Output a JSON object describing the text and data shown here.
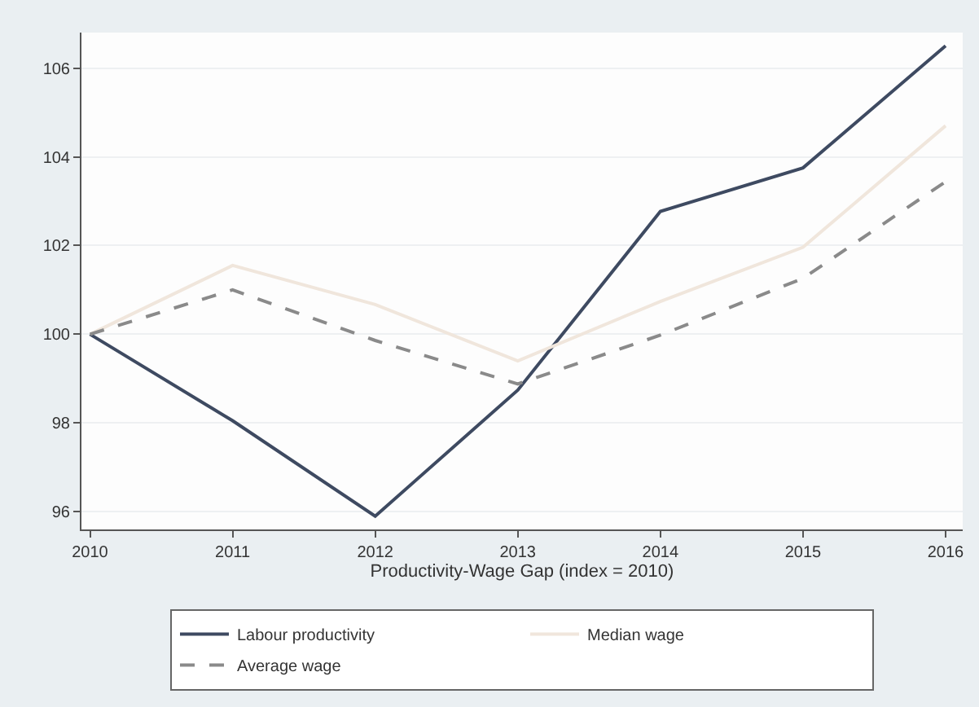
{
  "chart_data": {
    "type": "line",
    "xlabel": "Productivity-Wage Gap (index = 2010)",
    "x": [
      2010,
      2011,
      2012,
      2013,
      2014,
      2015,
      2016
    ],
    "series": [
      {
        "name": "Labour productivity",
        "color": "#3e4a61",
        "line_style": "solid",
        "values": [
          100,
          98.05,
          95.9,
          98.74,
          102.77,
          103.75,
          106.5
        ]
      },
      {
        "name": "Median wage",
        "color": "#f0e6dc",
        "line_style": "solid",
        "values": [
          100,
          101.55,
          100.67,
          99.4,
          100.74,
          101.96,
          104.7
        ]
      },
      {
        "name": "Average wage",
        "color": "#8a8a8a",
        "line_style": "dashed",
        "values": [
          100,
          101.0,
          99.86,
          98.88,
          99.98,
          101.26,
          103.44
        ]
      }
    ],
    "xlim": [
      2009.94,
      2016.12
    ],
    "xticks": [
      2010,
      2011,
      2012,
      2013,
      2014,
      2015,
      2016
    ],
    "ylim": [
      95.6,
      106.8
    ],
    "yticks": [
      96,
      98,
      100,
      102,
      104,
      106
    ],
    "grid": "y",
    "legend": "bottom",
    "marker": "none"
  }
}
